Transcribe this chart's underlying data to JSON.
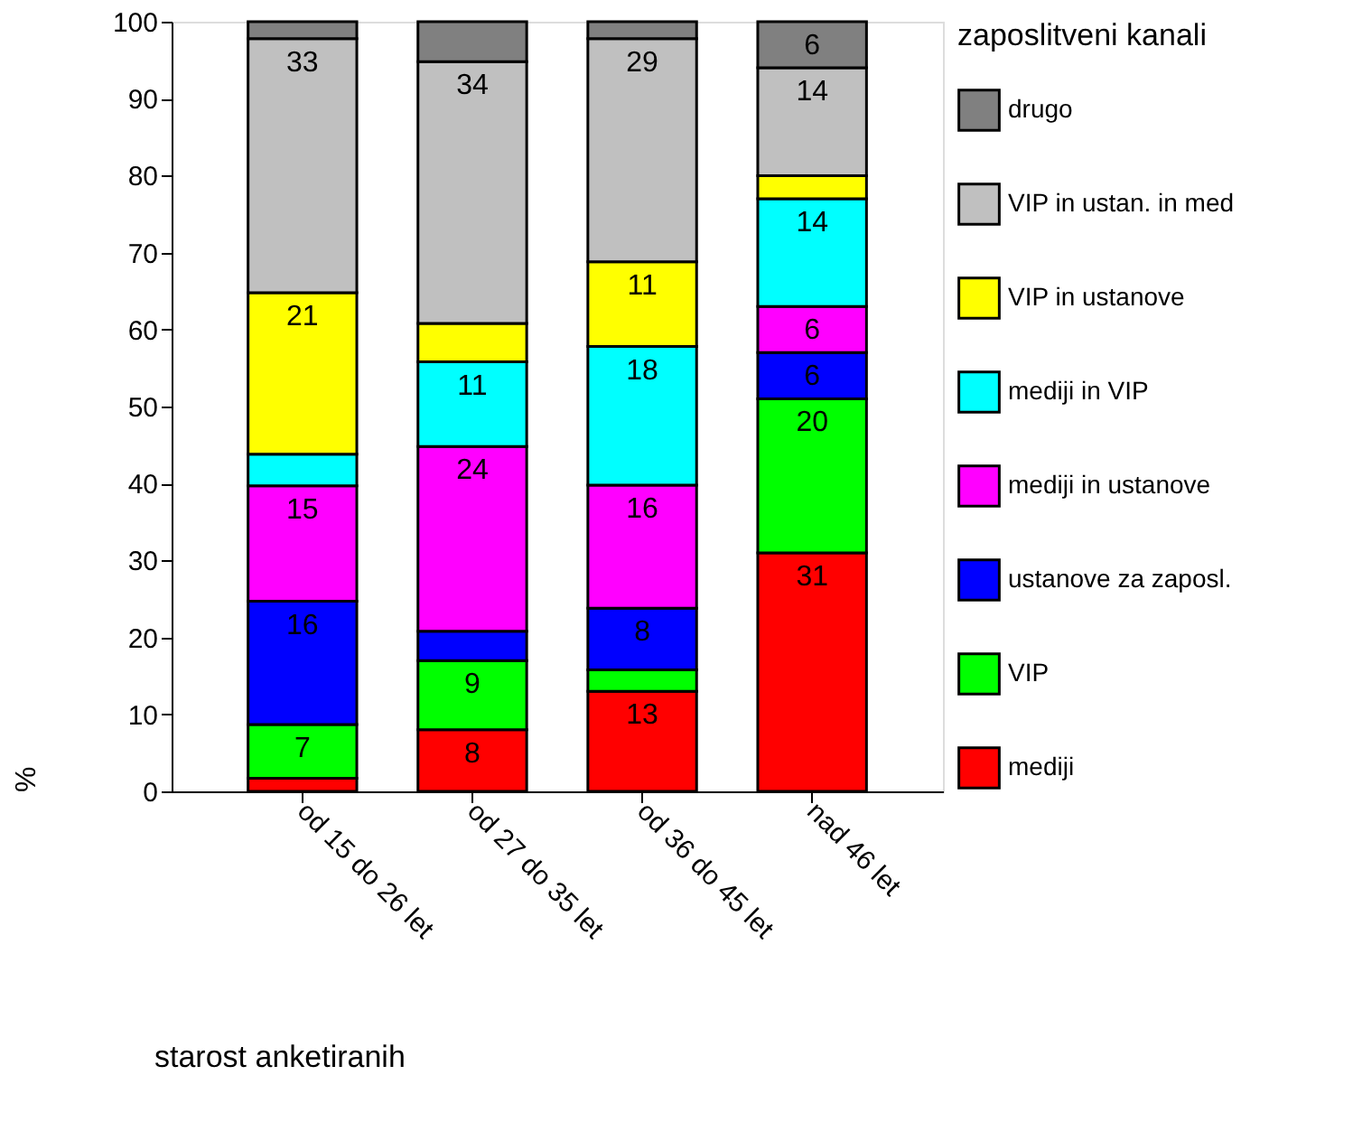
{
  "chart_data": {
    "type": "bar",
    "stacked": true,
    "xlabel": "starost anketiranih",
    "ylabel": "%",
    "legend_title": "zaposlitveni kanali",
    "legend": "right",
    "grid": false,
    "categories": [
      "od 15 do 26 let",
      "od 27 do 35 let",
      "od 36 do 45 let",
      "nad 46 let"
    ],
    "ylim": [
      0,
      100
    ],
    "yticks": [
      0,
      10,
      20,
      30,
      40,
      50,
      60,
      70,
      80,
      90,
      100
    ],
    "series": [
      {
        "name": "mediji",
        "color": "#ff0000",
        "values": [
          1.7,
          8,
          13,
          31
        ],
        "value_labels": [
          null,
          "8",
          "13",
          "31"
        ]
      },
      {
        "name": "VIP",
        "color": "#00ff00",
        "values": [
          7,
          9,
          2.8,
          20
        ],
        "value_labels": [
          "7",
          "9",
          null,
          "20"
        ]
      },
      {
        "name": "ustanove za zaposl.",
        "color": "#0000ff",
        "values": [
          16,
          3.8,
          8,
          6
        ],
        "value_labels": [
          "16",
          null,
          "8",
          "6"
        ]
      },
      {
        "name": "mediji in ustanove",
        "color": "#ff00ff",
        "values": [
          15,
          24,
          16,
          6
        ],
        "value_labels": [
          "15",
          "24",
          "16",
          "6"
        ]
      },
      {
        "name": "mediji in VIP",
        "color": "#00ffff",
        "values": [
          4.1,
          11,
          18,
          14
        ],
        "value_labels": [
          null,
          "11",
          "18",
          "14"
        ]
      },
      {
        "name": "VIP in ustanove",
        "color": "#ffff00",
        "values": [
          21,
          5,
          11,
          3
        ],
        "value_labels": [
          "21",
          null,
          "11",
          null
        ]
      },
      {
        "name": "VIP in ustan. in med",
        "color": "#c0c0c0",
        "values": [
          33,
          34,
          29,
          14
        ],
        "value_labels": [
          "33",
          "34",
          "29",
          "14"
        ]
      },
      {
        "name": "drugo",
        "color": "#808080",
        "values": [
          2.2,
          5.2,
          2.2,
          6
        ],
        "value_labels": [
          null,
          null,
          null,
          "6"
        ]
      }
    ]
  }
}
